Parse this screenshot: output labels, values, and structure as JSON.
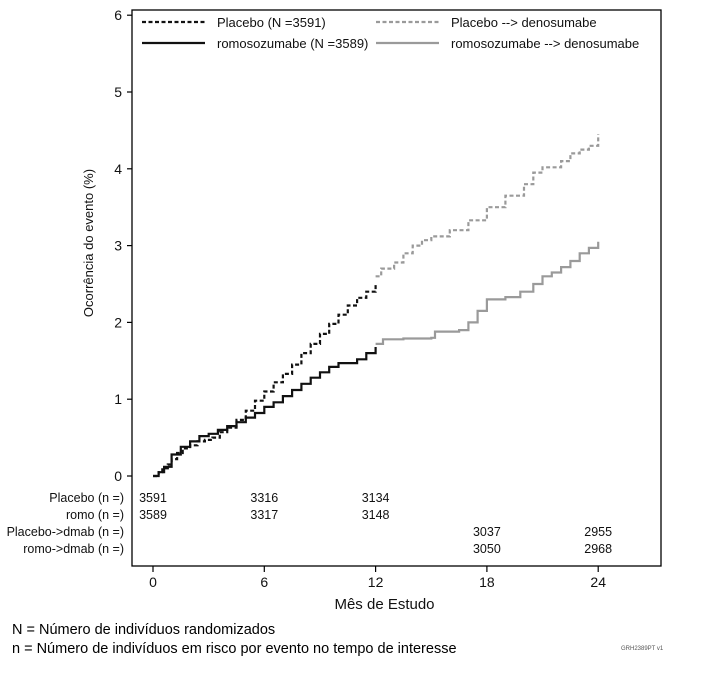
{
  "chart_data": {
    "type": "line",
    "ylabel": "Ocorrência do evento (%)",
    "xlabel": "Mês de Estudo",
    "xlim": [
      -1,
      27.8
    ],
    "ylim": [
      0,
      6.1
    ],
    "xticks": [
      0,
      6,
      12,
      18,
      24
    ],
    "yticks": [
      0,
      1,
      2,
      3,
      4,
      5,
      6
    ],
    "grid": false,
    "legend_position": "top",
    "legend": [
      {
        "label": "Placebo (N =3591)",
        "color": "#111111",
        "dash": "short"
      },
      {
        "label": "Placebo --> denosumabe",
        "color": "#9a9a9a",
        "dash": "short"
      },
      {
        "label": "romosozumabe (N =3589)",
        "color": "#111111",
        "dash": "solid"
      },
      {
        "label": "romosozumabe --> denosumabe",
        "color": "#9a9a9a",
        "dash": "solid"
      }
    ],
    "series": [
      {
        "name": "Placebo (N =3591)",
        "color": "#111111",
        "dash": "short",
        "points": [
          [
            0,
            0
          ],
          [
            0.3,
            0.05
          ],
          [
            0.5,
            0.1
          ],
          [
            0.8,
            0.15
          ],
          [
            1.0,
            0.22
          ],
          [
            1.3,
            0.3
          ],
          [
            1.6,
            0.36
          ],
          [
            2.0,
            0.4
          ],
          [
            2.4,
            0.45
          ],
          [
            2.8,
            0.47
          ],
          [
            3.2,
            0.5
          ],
          [
            3.6,
            0.57
          ],
          [
            4.0,
            0.63
          ],
          [
            4.5,
            0.73
          ],
          [
            5.0,
            0.85
          ],
          [
            5.5,
            0.98
          ],
          [
            6.0,
            1.1
          ],
          [
            6.5,
            1.22
          ],
          [
            7.0,
            1.33
          ],
          [
            7.5,
            1.45
          ],
          [
            8.0,
            1.6
          ],
          [
            8.5,
            1.72
          ],
          [
            9.0,
            1.85
          ],
          [
            9.5,
            1.98
          ],
          [
            10.0,
            2.1
          ],
          [
            10.5,
            2.22
          ],
          [
            11.0,
            2.32
          ],
          [
            11.5,
            2.4
          ],
          [
            12.0,
            2.5
          ]
        ]
      },
      {
        "name": "Placebo --> denosumabe",
        "color": "#9a9a9a",
        "dash": "short",
        "points": [
          [
            12.0,
            2.6
          ],
          [
            12.3,
            2.7
          ],
          [
            13.0,
            2.78
          ],
          [
            13.5,
            2.9
          ],
          [
            14.0,
            3.0
          ],
          [
            14.5,
            3.07
          ],
          [
            15.0,
            3.12
          ],
          [
            16.0,
            3.2
          ],
          [
            17.0,
            3.33
          ],
          [
            18.0,
            3.5
          ],
          [
            19.0,
            3.65
          ],
          [
            20.0,
            3.8
          ],
          [
            20.5,
            3.95
          ],
          [
            21.0,
            4.02
          ],
          [
            22.0,
            4.1
          ],
          [
            22.5,
            4.2
          ],
          [
            23.0,
            4.25
          ],
          [
            23.5,
            4.3
          ],
          [
            24.0,
            4.45
          ]
        ]
      },
      {
        "name": "romosozumabe (N =3589)",
        "color": "#111111",
        "dash": "solid",
        "points": [
          [
            0,
            0
          ],
          [
            0.3,
            0.05
          ],
          [
            0.6,
            0.12
          ],
          [
            1.0,
            0.28
          ],
          [
            1.5,
            0.38
          ],
          [
            2.0,
            0.45
          ],
          [
            2.5,
            0.52
          ],
          [
            3.0,
            0.55
          ],
          [
            3.5,
            0.6
          ],
          [
            4.0,
            0.65
          ],
          [
            4.5,
            0.7
          ],
          [
            5.0,
            0.76
          ],
          [
            5.5,
            0.82
          ],
          [
            6.0,
            0.9
          ],
          [
            6.5,
            0.96
          ],
          [
            7.0,
            1.04
          ],
          [
            7.5,
            1.12
          ],
          [
            8.0,
            1.2
          ],
          [
            8.5,
            1.28
          ],
          [
            9.0,
            1.35
          ],
          [
            9.5,
            1.42
          ],
          [
            10.0,
            1.47
          ],
          [
            11.0,
            1.52
          ],
          [
            11.5,
            1.6
          ],
          [
            12.0,
            1.68
          ]
        ]
      },
      {
        "name": "romosozumabe --> denosumabe",
        "color": "#9a9a9a",
        "dash": "solid",
        "points": [
          [
            12.0,
            1.72
          ],
          [
            12.4,
            1.78
          ],
          [
            13.5,
            1.79
          ],
          [
            15.0,
            1.8
          ],
          [
            15.2,
            1.88
          ],
          [
            16.5,
            1.9
          ],
          [
            17.0,
            2.0
          ],
          [
            17.5,
            2.15
          ],
          [
            18.0,
            2.3
          ],
          [
            19.0,
            2.33
          ],
          [
            19.8,
            2.4
          ],
          [
            20.5,
            2.5
          ],
          [
            21.0,
            2.6
          ],
          [
            21.5,
            2.65
          ],
          [
            22.0,
            2.72
          ],
          [
            22.5,
            2.8
          ],
          [
            23.0,
            2.9
          ],
          [
            23.5,
            2.97
          ],
          [
            24.0,
            3.05
          ]
        ]
      }
    ],
    "at_risk_rows": [
      {
        "label": "Placebo (n =)",
        "values": [
          {
            "x": 0,
            "v": "3591"
          },
          {
            "x": 6,
            "v": "3316"
          },
          {
            "x": 12,
            "v": "3134"
          }
        ]
      },
      {
        "label": "romo (n =)",
        "values": [
          {
            "x": 0,
            "v": "3589"
          },
          {
            "x": 6,
            "v": "3317"
          },
          {
            "x": 12,
            "v": "3148"
          }
        ]
      },
      {
        "label": "Placebo->dmab (n =)",
        "values": [
          {
            "x": 18,
            "v": "3037"
          },
          {
            "x": 24,
            "v": "2955"
          }
        ]
      },
      {
        "label": "romo->dmab (n =)",
        "values": [
          {
            "x": 18,
            "v": "3050"
          },
          {
            "x": 24,
            "v": "2968"
          }
        ]
      }
    ]
  },
  "footnotes": {
    "line1": "N = Número de indivíduos randomizados",
    "line2": "n = Número de indivíduos em risco por evento no tempo de interesse"
  },
  "figure_code": "GRH2389PT v1"
}
